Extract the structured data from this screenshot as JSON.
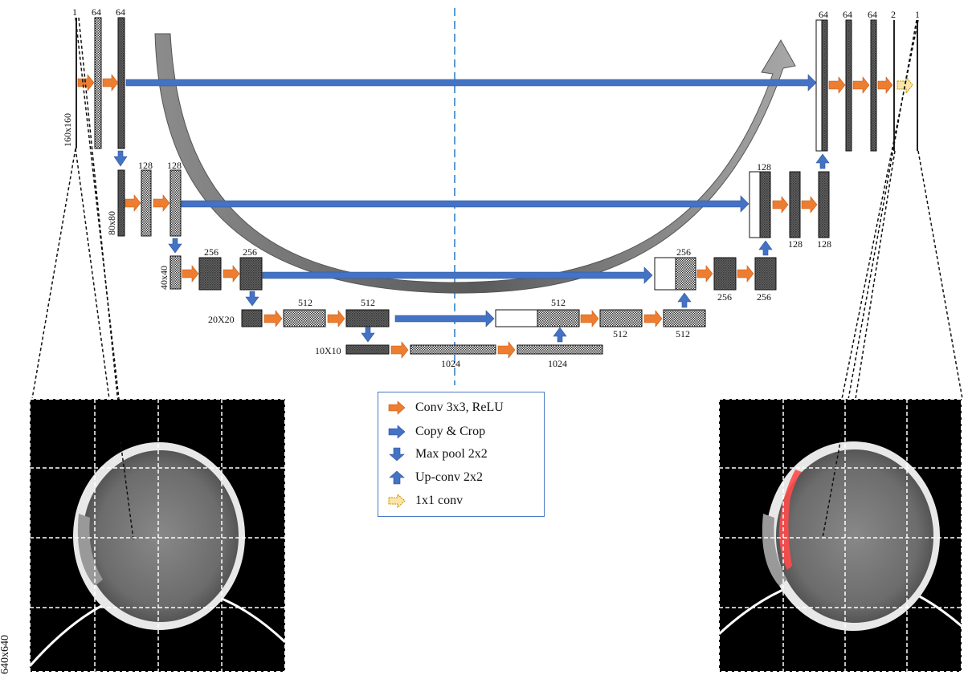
{
  "colors": {
    "conv_arrow": "#ed7d31",
    "copy_arrow": "#4472c4",
    "pool_arrow": "#4472c4",
    "upconv_arrow": "#4472c4",
    "final_conv_arrow": "#fbe5a6",
    "dashed_axis": "#5b9bd5",
    "segmentation_overlay": "#ff4b4b"
  },
  "channel_labels": {
    "input": "1",
    "enc1_a": "64",
    "enc1_b": "64",
    "enc2_a": "128",
    "enc2_b": "128",
    "enc3_a": "256",
    "enc3_b": "256",
    "enc4_a": "512",
    "enc4_b": "512",
    "bottom_a": "1024",
    "bottom_b": "1024",
    "dec4_concat": "512",
    "dec4_a": "512",
    "dec4_b": "512",
    "dec3_concat": "256",
    "dec3_a": "256",
    "dec3_b": "256",
    "dec2_concat": "128",
    "dec2_a": "128",
    "dec2_b": "128",
    "dec1_concat": "64",
    "dec1_a": "64",
    "dec1_b": "64",
    "dec1_out": "2",
    "output": "1"
  },
  "size_labels": {
    "level1": "160x160",
    "level2": "80x80",
    "level3": "40x40",
    "level4": "20X20",
    "level5": "10X10",
    "input_image": "640x640"
  },
  "legend": {
    "items": [
      {
        "icon": "conv-arrow-icon",
        "label": "Conv 3x3, ReLU"
      },
      {
        "icon": "copy-arrow-icon",
        "label": "Copy & Crop"
      },
      {
        "icon": "maxpool-arrow-icon",
        "label": "Max pool 2x2"
      },
      {
        "icon": "upconv-arrow-icon",
        "label": "Up-conv 2x2"
      },
      {
        "icon": "final-conv-arrow-icon",
        "label": "1x1 conv"
      }
    ]
  }
}
